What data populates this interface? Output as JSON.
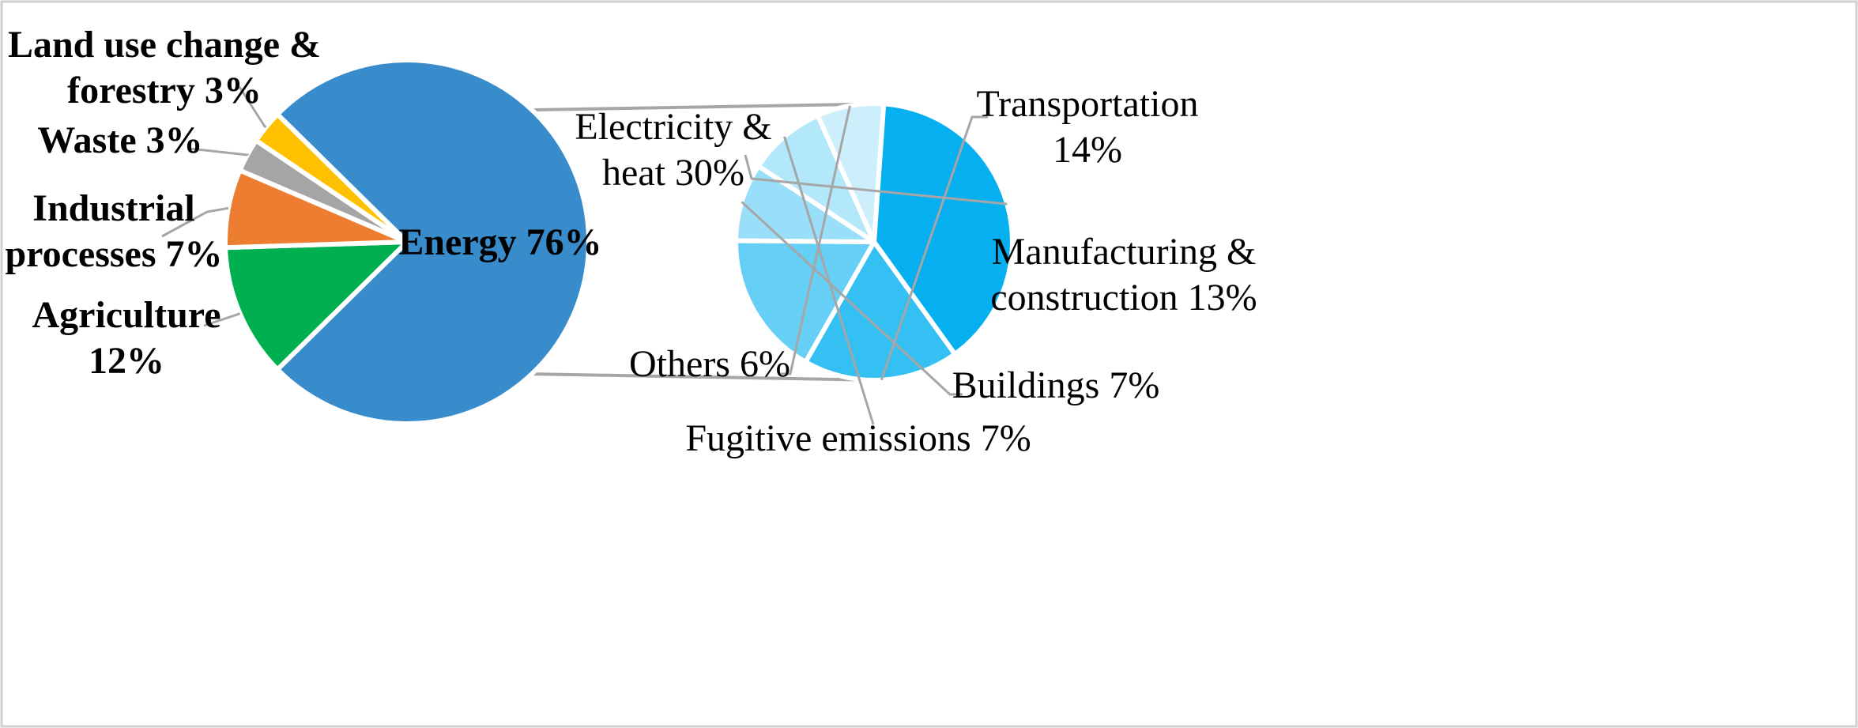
{
  "chart_data": [
    {
      "type": "pie",
      "title": "",
      "slices": [
        {
          "label": "Energy",
          "value": 76,
          "display": "Energy 76%",
          "color": "#388ccb"
        },
        {
          "label": "Agriculture",
          "value": 12,
          "display": "Agriculture 12%",
          "display_lines": [
            "Agriculture",
            "12%"
          ],
          "color": "#00b050"
        },
        {
          "label": "Industrial processes",
          "value": 7,
          "display": "Industrial processes 7%",
          "display_lines": [
            "Industrial",
            "processes 7%"
          ],
          "color": "#ed7d31"
        },
        {
          "label": "Waste",
          "value": 3,
          "display": "Waste 3%",
          "color": "#a5a5a5"
        },
        {
          "label": "Land use change & forestry",
          "value": 3,
          "display": "Land use change & forestry 3%",
          "display_lines": [
            "Land use change &",
            "forestry 3%"
          ],
          "color": "#ffc000"
        }
      ],
      "exploded_slice": "Energy"
    },
    {
      "type": "pie",
      "title": "",
      "parent": "Energy",
      "slices": [
        {
          "label": "Electricity & heat",
          "value": 30,
          "display_lines": [
            "Electricity &",
            "heat 30%"
          ],
          "color": "#06b0f0"
        },
        {
          "label": "Transportation",
          "value": 14,
          "display_lines": [
            "Transportation",
            "14%"
          ],
          "color": "#34c0f3"
        },
        {
          "label": "Manufacturing & construction",
          "value": 13,
          "display_lines": [
            "Manufacturing &",
            "construction 13%"
          ],
          "color": "#66cff6"
        },
        {
          "label": "Buildings",
          "value": 7,
          "display_lines": [
            "Buildings 7%"
          ],
          "color": "#99dff9"
        },
        {
          "label": "Fugitive emissions",
          "value": 7,
          "display_lines": [
            "Fugitive emissions 7%"
          ],
          "color": "#b3e7fa"
        },
        {
          "label": "Others",
          "value": 6,
          "display_lines": [
            "Others 6%"
          ],
          "color": "#cdeffc"
        }
      ]
    }
  ]
}
